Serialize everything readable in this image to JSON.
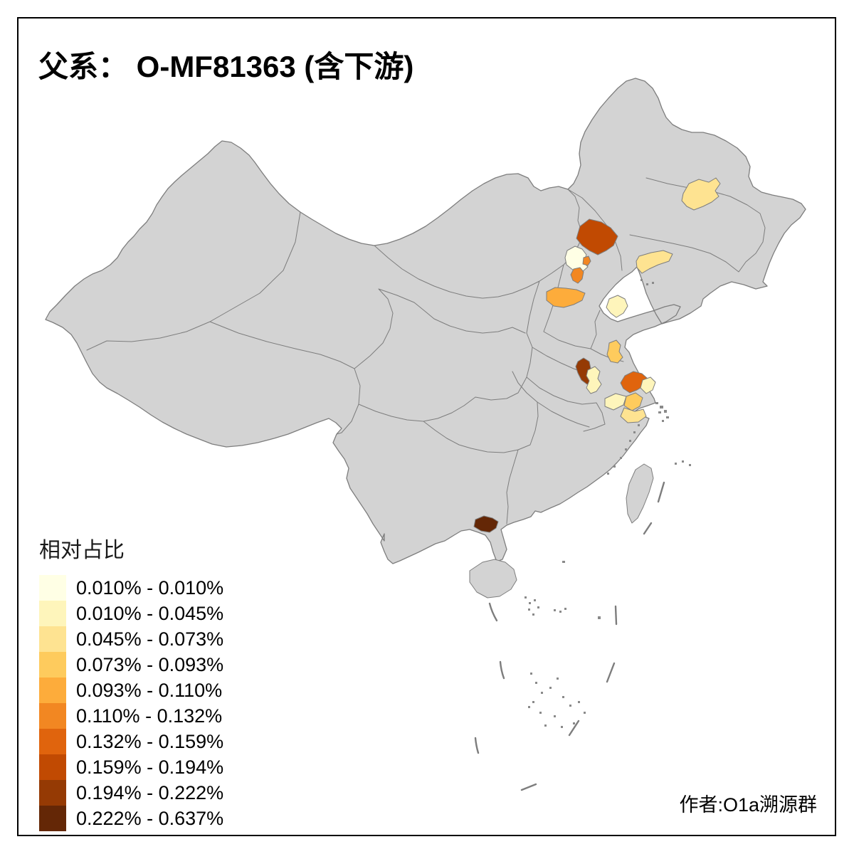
{
  "title": "父系： O-MF81363 (含下游)",
  "attribution": "作者:O1a溯源群",
  "legend": {
    "title": "相对占比",
    "classes": [
      {
        "label": "0.010% - 0.010%",
        "color": "#FFFFE5"
      },
      {
        "label": "0.010% - 0.045%",
        "color": "#FEF5BB"
      },
      {
        "label": "0.045% - 0.073%",
        "color": "#FEE391"
      },
      {
        "label": "0.073% - 0.093%",
        "color": "#FECB5D"
      },
      {
        "label": "0.093% - 0.110%",
        "color": "#FDAC3B"
      },
      {
        "label": "0.110% - 0.132%",
        "color": "#F28722"
      },
      {
        "label": "0.132% - 0.159%",
        "color": "#E0640D"
      },
      {
        "label": "0.159% - 0.194%",
        "color": "#C14A02"
      },
      {
        "label": "0.194% - 0.222%",
        "color": "#953A04"
      },
      {
        "label": "0.222% - 0.637%",
        "color": "#642706"
      }
    ]
  },
  "map": {
    "land_color": "#D3D3D3",
    "border_color": "#7D7D7D",
    "sea_color": "#FFFFFF",
    "regions": [
      {
        "key": "beijing",
        "class_index": 0
      },
      {
        "key": "zibo",
        "class_index": 1
      },
      {
        "key": "nantong",
        "class_index": 1
      },
      {
        "key": "chuzhou",
        "class_index": 1
      },
      {
        "key": "wuxi-changzhou",
        "class_index": 1
      },
      {
        "key": "jilin-city",
        "class_index": 2
      },
      {
        "key": "yingkou",
        "class_index": 2
      },
      {
        "key": "jiaxing",
        "class_index": 2
      },
      {
        "key": "huaian",
        "class_index": 3
      },
      {
        "key": "suzhou",
        "class_index": 3
      },
      {
        "key": "shijiazhuang",
        "class_index": 4
      },
      {
        "key": "sanhe",
        "class_index": 5
      },
      {
        "key": "langfang",
        "class_index": 5
      },
      {
        "key": "yangzhou",
        "class_index": 6
      },
      {
        "key": "chengde",
        "class_index": 7
      },
      {
        "key": "huainan",
        "class_index": 8
      },
      {
        "key": "qinzhou",
        "class_index": 9
      }
    ]
  }
}
